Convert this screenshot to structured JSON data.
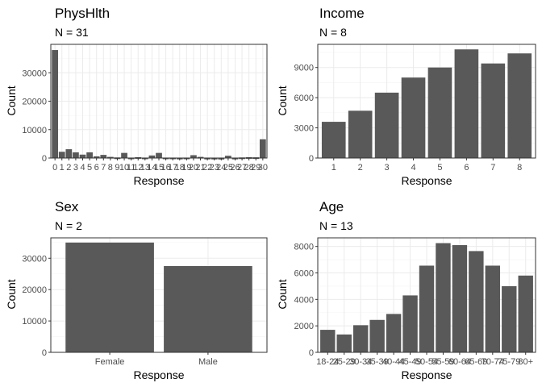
{
  "chart_data": [
    {
      "type": "bar",
      "title": "PhysHlth",
      "subtitle": "N = 31",
      "xlabel": "Response",
      "ylabel": "Count",
      "categories": [
        "0",
        "1",
        "2",
        "3",
        "4",
        "5",
        "6",
        "7",
        "8",
        "9",
        "10",
        "11",
        "12",
        "13",
        "14",
        "15",
        "16",
        "17",
        "18",
        "19",
        "20",
        "21",
        "22",
        "23",
        "24",
        "25",
        "26",
        "27",
        "28",
        "29",
        "30"
      ],
      "values": [
        38000,
        2200,
        3100,
        2000,
        1200,
        2000,
        600,
        1100,
        400,
        200,
        1800,
        150,
        300,
        150,
        900,
        1800,
        150,
        150,
        100,
        150,
        1000,
        400,
        100,
        80,
        50,
        800,
        100,
        200,
        300,
        250,
        6600
      ],
      "ylim": [
        0,
        40000
      ],
      "yticks": [
        0,
        10000,
        20000,
        30000
      ],
      "grid": true
    },
    {
      "type": "bar",
      "title": "Income",
      "subtitle": "N = 8",
      "xlabel": "Response",
      "ylabel": "Count",
      "categories": [
        "1",
        "2",
        "3",
        "4",
        "5",
        "6",
        "7",
        "8"
      ],
      "values": [
        3600,
        4700,
        6500,
        8000,
        9000,
        10800,
        9400,
        10400
      ],
      "ylim": [
        0,
        11300
      ],
      "yticks": [
        0,
        3000,
        6000,
        9000
      ],
      "grid": true
    },
    {
      "type": "bar",
      "title": "Sex",
      "subtitle": "N = 2",
      "xlabel": "Response",
      "ylabel": "Count",
      "categories": [
        "Female",
        "Male"
      ],
      "values": [
        35000,
        27500
      ],
      "ylim": [
        0,
        36500
      ],
      "yticks": [
        0,
        10000,
        20000,
        30000
      ],
      "grid": true
    },
    {
      "type": "bar",
      "title": "Age",
      "subtitle": "N = 13",
      "xlabel": "Response",
      "ylabel": "Count",
      "categories": [
        "18-24",
        "25-29",
        "30-34",
        "35-39",
        "40-44",
        "45-49",
        "50-54",
        "55-59",
        "60-64",
        "65-69",
        "70-74",
        "75-79",
        "80+"
      ],
      "values": [
        1700,
        1350,
        2050,
        2450,
        2900,
        4300,
        6550,
        8250,
        8100,
        7650,
        6550,
        5000,
        5800
      ],
      "ylim": [
        0,
        8650
      ],
      "yticks": [
        0,
        2000,
        4000,
        6000,
        8000
      ],
      "grid": true
    }
  ]
}
